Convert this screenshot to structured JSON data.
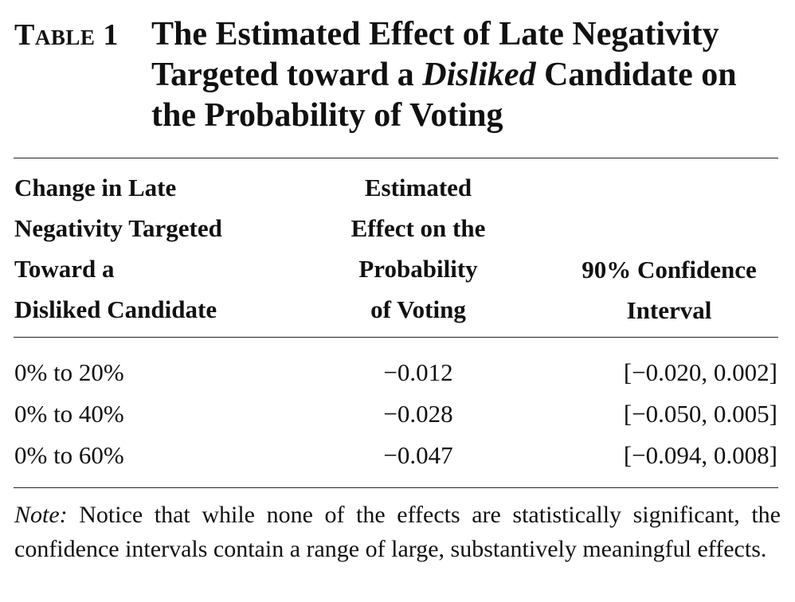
{
  "title": {
    "label": "Table 1",
    "text_before": "The Estimated Effect of Late Negativity Targeted toward a ",
    "text_italic": "Disliked",
    "text_after": " Candidate on the Probability of Voting"
  },
  "columns": [
    {
      "lines": [
        "Change in Late",
        "Negativity Targeted",
        "Toward a",
        "Disliked Candidate"
      ]
    },
    {
      "lines": [
        "Estimated",
        "Effect on the",
        "Probability",
        "of Voting"
      ]
    },
    {
      "lines": [
        "90% Confidence",
        "Interval"
      ]
    }
  ],
  "rows": [
    {
      "change": "0% to 20%",
      "effect": "−0.012",
      "ci": "[−0.020, 0.002]"
    },
    {
      "change": "0% to 40%",
      "effect": "−0.028",
      "ci": "[−0.050, 0.005]"
    },
    {
      "change": "0% to 60%",
      "effect": "−0.047",
      "ci": "[−0.094, 0.008]"
    }
  ],
  "note": {
    "label": "Note:",
    "text": " Notice that while none of the effects are statistically significant, the confidence intervals contain a range of large, substantively meaningful effects."
  }
}
